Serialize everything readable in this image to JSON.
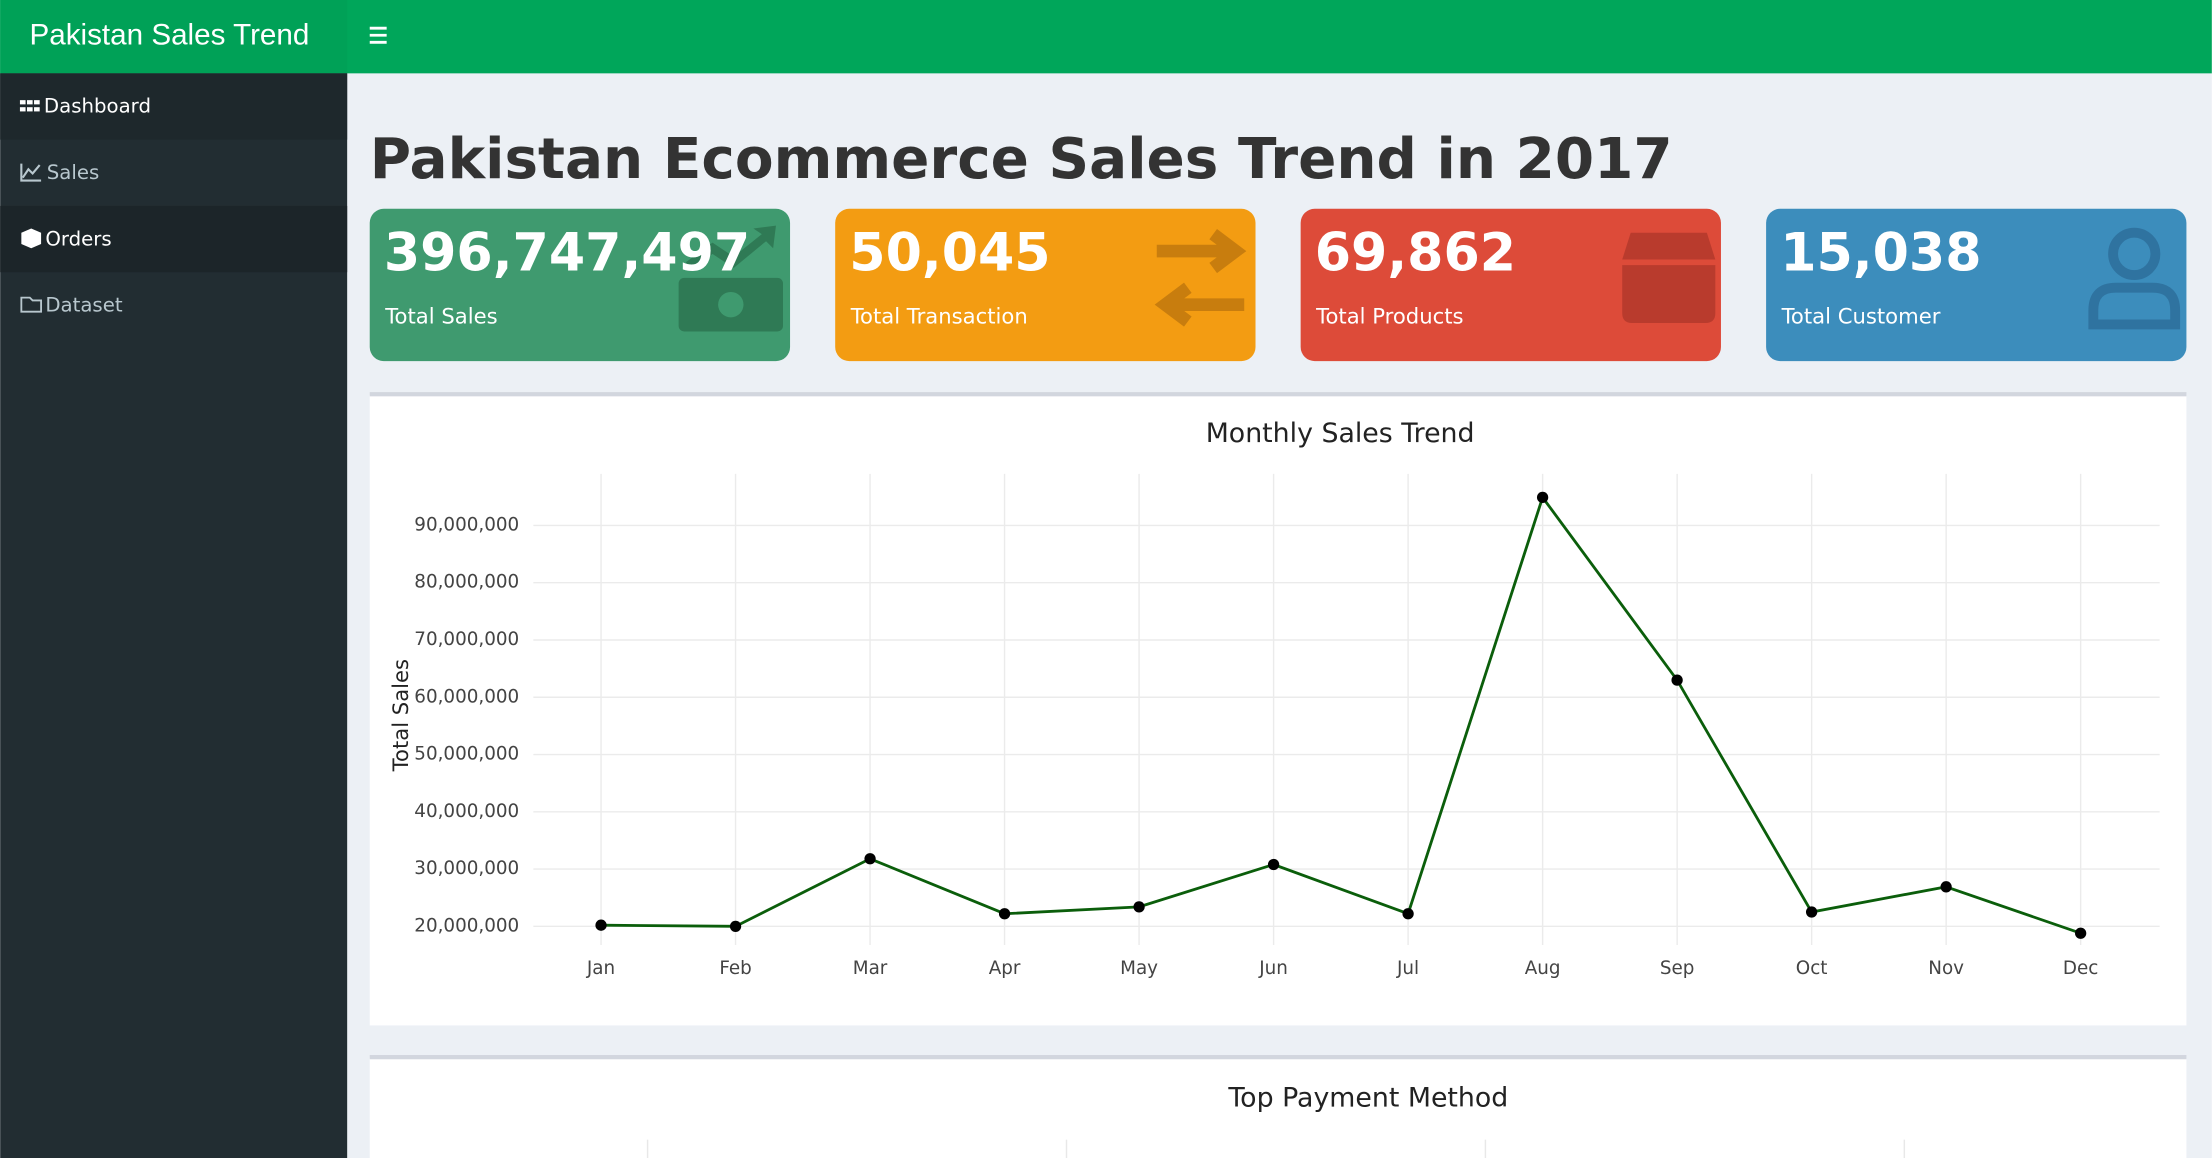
{
  "navbar": {
    "brand": "Pakistan Sales Trend"
  },
  "sidebar": {
    "items": [
      "Dashboard",
      "Sales",
      "Orders",
      "Dataset"
    ]
  },
  "header": {
    "title": "Pakistan Ecommerce Sales Trend in 2017"
  },
  "cards": [
    {
      "value": "396,747,497",
      "label": "Total Sales"
    },
    {
      "value": "50,045",
      "label": "Total Transaction"
    },
    {
      "value": "69,862",
      "label": "Total Products"
    },
    {
      "value": "15,038",
      "label": "Total Customer"
    }
  ],
  "chart_data": {
    "type": "line",
    "title": "Monthly Sales Trend",
    "y_label": "Total Sales",
    "categories": [
      "Jan",
      "Feb",
      "Mar",
      "Apr",
      "May",
      "Jun",
      "Jul",
      "Aug",
      "Sep",
      "Oct",
      "Nov",
      "Dec"
    ],
    "series": [
      {
        "name": "Total Sales",
        "color": "#0b5e0b",
        "values": [
          20200000,
          20000000,
          31800000,
          22200000,
          23400000,
          30800000,
          22200000,
          94900000,
          63000000,
          22500000,
          26900000,
          18800000
        ]
      }
    ],
    "ylim": [
      16000000,
      99000000
    ],
    "yticks": [
      {
        "value": 20000000,
        "label": "20,000,000"
      },
      {
        "value": 30000000,
        "label": "30,000,000"
      },
      {
        "value": 40000000,
        "label": "40,000,000"
      },
      {
        "value": 50000000,
        "label": "50,000,000"
      },
      {
        "value": 60000000,
        "label": "60,000,000"
      },
      {
        "value": 70000000,
        "label": "70,000,000"
      },
      {
        "value": 80000000,
        "label": "80,000,000"
      },
      {
        "value": 90000000,
        "label": "90,000,000"
      }
    ],
    "grid": true
  },
  "payment_chart": {
    "title": "Top Payment Method"
  }
}
